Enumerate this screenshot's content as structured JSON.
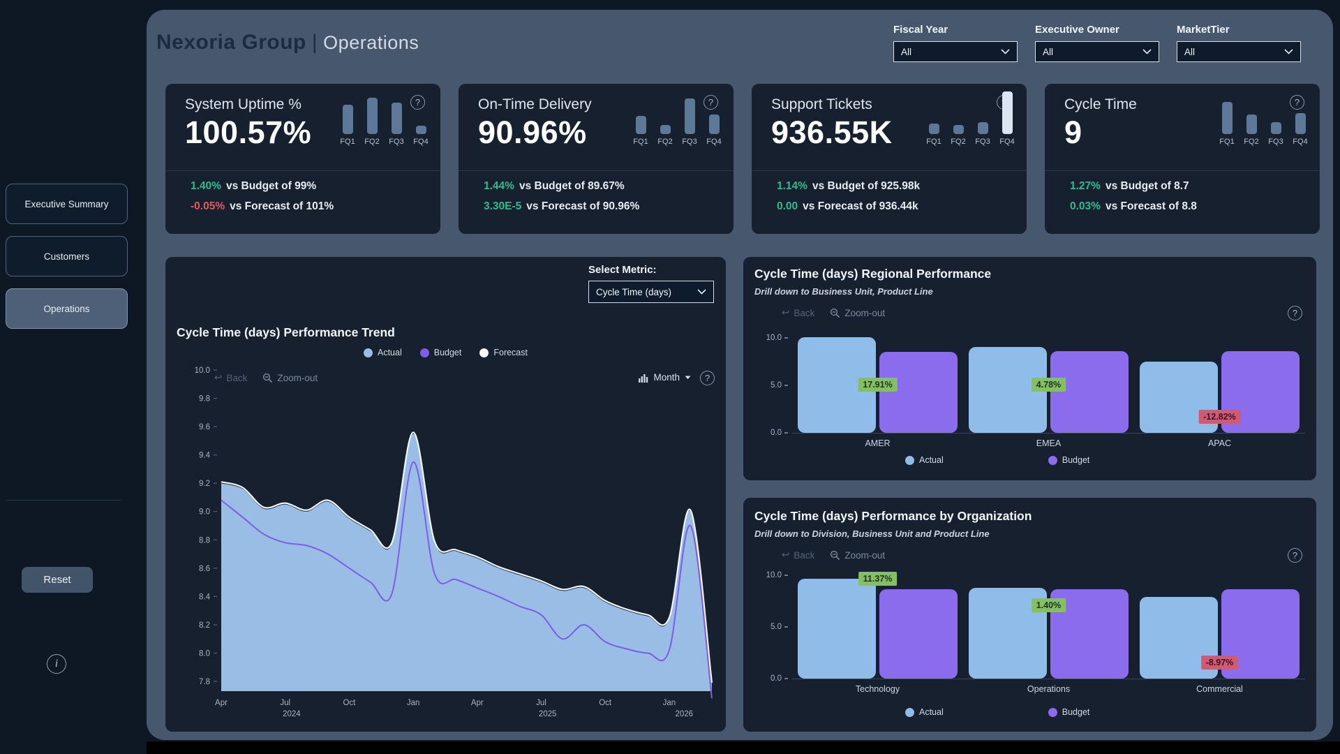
{
  "header": {
    "brand": "Nexoria Group",
    "divider": "|",
    "page": "Operations"
  },
  "filters": [
    {
      "label": "Fiscal Year",
      "value": "All"
    },
    {
      "label": "Executive Owner",
      "value": "All"
    },
    {
      "label": "MarketTier",
      "value": "All"
    }
  ],
  "sidebar": {
    "nav": [
      {
        "label": "Executive Summary",
        "active": false
      },
      {
        "label": "Customers",
        "active": false
      },
      {
        "label": "Operations",
        "active": true
      }
    ],
    "reset": "Reset",
    "info_icon": "i"
  },
  "kpi_cards": [
    {
      "title": "System Uptime %",
      "value": "100.57%",
      "sparkline": {
        "labels": [
          "FQ1",
          "FQ2",
          "FQ3",
          "FQ4"
        ],
        "values": [
          0.72,
          0.9,
          0.78,
          0.2
        ],
        "highlight": null
      },
      "comparisons": [
        {
          "delta": "1.40%",
          "direction": "up",
          "text": "vs Budget of 99%"
        },
        {
          "delta": "-0.05%",
          "direction": "down",
          "text": "vs Forecast of 101%"
        }
      ]
    },
    {
      "title": "On-Time Delivery",
      "value": "90.96%",
      "sparkline": {
        "labels": [
          "FQ1",
          "FQ2",
          "FQ3",
          "FQ4"
        ],
        "values": [
          0.45,
          0.22,
          0.88,
          0.48
        ],
        "highlight": null
      },
      "comparisons": [
        {
          "delta": "1.44%",
          "direction": "up",
          "text": "vs Budget of 89.67%"
        },
        {
          "delta": "3.30E-5",
          "direction": "up",
          "text": "vs Forecast of 90.96%"
        }
      ]
    },
    {
      "title": "Support Tickets",
      "value": "936.55K",
      "sparkline": {
        "labels": [
          "FQ1",
          "FQ2",
          "FQ3",
          "FQ4"
        ],
        "values": [
          0.25,
          0.22,
          0.3,
          1.05
        ],
        "highlight": 3
      },
      "comparisons": [
        {
          "delta": "1.14%",
          "direction": "up",
          "text": "vs Budget of 925.98k"
        },
        {
          "delta": "0.00",
          "direction": "up",
          "text": "vs Forecast of 936.44k"
        }
      ]
    },
    {
      "title": "Cycle Time",
      "value": "9",
      "sparkline": {
        "labels": [
          "FQ1",
          "FQ2",
          "FQ3",
          "FQ4"
        ],
        "values": [
          0.8,
          0.48,
          0.3,
          0.52
        ],
        "highlight": null
      },
      "comparisons": [
        {
          "delta": "1.27%",
          "direction": "up",
          "text": "vs Budget of 8.7"
        },
        {
          "delta": "0.03%",
          "direction": "up",
          "text": "vs Forecast of 8.8"
        }
      ]
    }
  ],
  "metric_selector": {
    "label": "Select Metric:",
    "value": "Cycle Time (days)"
  },
  "chart_controls": {
    "back": "Back",
    "zoom_out": "Zoom-out",
    "granularity": "Month",
    "help": "?"
  },
  "chart_data": [
    {
      "type": "area",
      "title": "Cycle Time (days) Performance Trend",
      "x": [
        "Apr 2024",
        "May 2024",
        "Jun 2024",
        "Jul 2024",
        "Aug 2024",
        "Sep 2024",
        "Oct 2024",
        "Nov 2024",
        "Dec 2024",
        "Jan 2025",
        "Feb 2025",
        "Mar 2025",
        "Apr 2025",
        "May 2025",
        "Jun 2025",
        "Jul 2025",
        "Aug 2025",
        "Sep 2025",
        "Oct 2025",
        "Nov 2025",
        "Dec 2025",
        "Jan 2026",
        "Feb 2026",
        "Mar 2026"
      ],
      "series": [
        {
          "name": "Actual",
          "color": "#9abde6",
          "values": [
            9.2,
            9.16,
            9.02,
            9.05,
            9.0,
            9.07,
            8.95,
            8.86,
            8.77,
            9.55,
            8.78,
            8.72,
            8.67,
            8.6,
            8.55,
            8.5,
            8.44,
            8.46,
            8.36,
            8.3,
            8.26,
            8.24,
            9.0,
            7.78
          ]
        },
        {
          "name": "Budget",
          "color": "#7c5ce8",
          "values": [
            9.08,
            8.96,
            8.84,
            8.78,
            8.76,
            8.7,
            8.6,
            8.5,
            8.42,
            9.35,
            8.56,
            8.52,
            8.46,
            8.4,
            8.33,
            8.27,
            8.1,
            8.2,
            8.08,
            8.03,
            8.0,
            8.02,
            8.9,
            7.68
          ]
        },
        {
          "name": "Forecast",
          "color": "#f5f7f9",
          "values": [
            9.21,
            9.17,
            9.03,
            9.06,
            9.01,
            9.08,
            8.96,
            8.87,
            8.78,
            9.56,
            8.79,
            8.73,
            8.68,
            8.61,
            8.56,
            8.51,
            8.45,
            8.47,
            8.37,
            8.31,
            8.27,
            8.25,
            9.01,
            7.79
          ]
        }
      ],
      "ylim": [
        7.8,
        10.0
      ],
      "ytick_step": 0.2,
      "x_ticks": [
        {
          "index": 0,
          "label": "Apr"
        },
        {
          "index": 3,
          "label": "Jul"
        },
        {
          "index": 6,
          "label": "Oct"
        },
        {
          "index": 9,
          "label": "Jan"
        },
        {
          "index": 12,
          "label": "Apr"
        },
        {
          "index": 15,
          "label": "Jul"
        },
        {
          "index": 18,
          "label": "Oct"
        },
        {
          "index": 21,
          "label": "Jan"
        }
      ],
      "year_labels": [
        {
          "index": 3.3,
          "label": "2024"
        },
        {
          "index": 15.3,
          "label": "2025"
        },
        {
          "index": 21.7,
          "label": "2026"
        }
      ],
      "grid": false,
      "legend_position": "top-center"
    },
    {
      "type": "bar",
      "title": "Cycle Time (days) Regional Performance",
      "subtitle": "Drill down to Business Unit, Product Line",
      "categories": [
        "AMER",
        "EMEA",
        "APAC"
      ],
      "series": [
        {
          "name": "Actual",
          "color": "#8fbce9",
          "values": [
            10.08,
            9.02,
            7.5
          ]
        },
        {
          "name": "Budget",
          "color": "#8a6ced",
          "values": [
            8.55,
            8.61,
            8.6
          ]
        }
      ],
      "delta_labels": [
        {
          "text": "17.91%",
          "positive": true,
          "y": 5.0
        },
        {
          "text": "4.78%",
          "positive": true,
          "y": 5.0
        },
        {
          "text": "-12.82%",
          "positive": false,
          "y": 1.6
        }
      ],
      "ylim": [
        0,
        10
      ],
      "yticks": [
        10.0,
        5.0,
        0.0
      ],
      "legend_position": "bottom"
    },
    {
      "type": "bar",
      "title": "Cycle Time (days) Performance by Organization",
      "subtitle": "Drill down to Division, Business Unit and Product Line",
      "categories": [
        "Technology",
        "Operations",
        "Commercial"
      ],
      "series": [
        {
          "name": "Actual",
          "color": "#8fbce9",
          "values": [
            9.65,
            8.79,
            7.89
          ]
        },
        {
          "name": "Budget",
          "color": "#8a6ced",
          "values": [
            8.67,
            8.67,
            8.67
          ]
        }
      ],
      "delta_labels": [
        {
          "text": "11.37%",
          "positive": true,
          "y": 9.6
        },
        {
          "text": "1.40%",
          "positive": true,
          "y": 7.0
        },
        {
          "text": "-8.97%",
          "positive": false,
          "y": 1.5
        }
      ],
      "ylim": [
        0,
        10
      ],
      "yticks": [
        10.0,
        5.0,
        0.0
      ],
      "legend_position": "bottom"
    }
  ],
  "colors": {
    "positive_text": "#31ba8c",
    "negative_text": "#e25b5b",
    "delta_pos_bg": "#84c063",
    "delta_pos_text": "#1e3318",
    "delta_neg_bg": "#d15a71",
    "delta_neg_text": "#3c1322",
    "actual": "#8fbce9",
    "budget": "#8a6ced",
    "forecast": "#f5f7f9",
    "spark_bar": "#5d7898",
    "spark_bar_highlight": "#dce6f2"
  }
}
